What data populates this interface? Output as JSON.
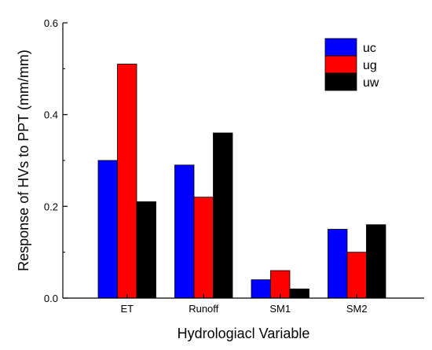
{
  "chart_data": {
    "type": "bar",
    "title": "",
    "xlabel": "Hydrologiacl Variable",
    "ylabel": "Response of HVs to PPT (mm/mm)",
    "categories": [
      "ET",
      "Runoff",
      "SM1",
      "SM2"
    ],
    "ylim": [
      0,
      0.6
    ],
    "yticks": [
      "0.0",
      "0.2",
      "0.4",
      "0.6"
    ],
    "grid": false,
    "legend_position": "top-right",
    "series": [
      {
        "name": "uc",
        "color": "#0000ff",
        "values": [
          0.3,
          0.29,
          0.04,
          0.15
        ]
      },
      {
        "name": "ug",
        "color": "#ff0000",
        "values": [
          0.51,
          0.22,
          0.06,
          0.1
        ]
      },
      {
        "name": "uw",
        "color": "#000000",
        "values": [
          0.21,
          0.36,
          0.02,
          0.16
        ]
      }
    ]
  }
}
